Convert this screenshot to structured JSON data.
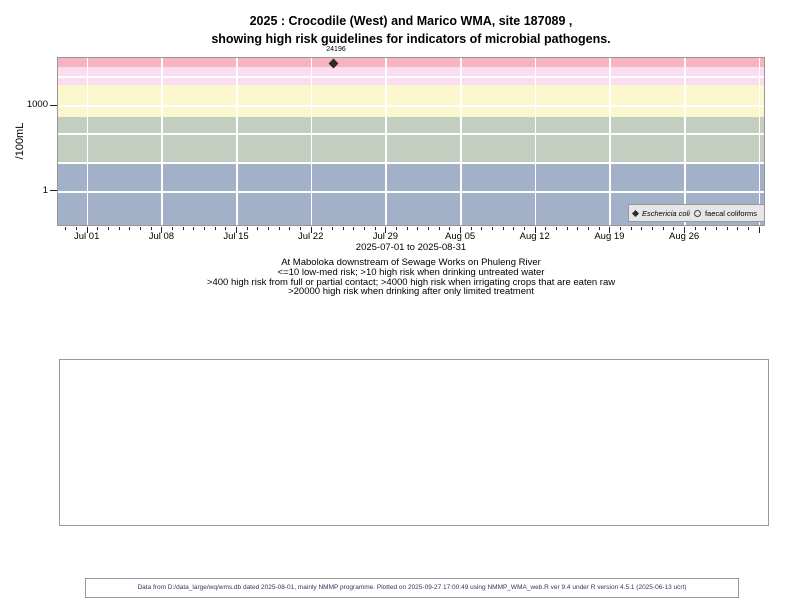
{
  "title": {
    "line1": "2025 : Crocodile (West) and Marico WMA, site 187089 ,",
    "line2": "showing high risk guidelines for indicators of microbial pathogens."
  },
  "chart_data": {
    "type": "scatter",
    "y_scale": "log",
    "ylabel": "/100mL",
    "xlabel": "2025-07-01 to 2025-08-31",
    "x_ticks": [
      "Jul 01",
      "Jul 08",
      "Jul 15",
      "Jul 22",
      "Jul 29",
      "Aug 05",
      "Aug 12",
      "Aug 19",
      "Aug 26"
    ],
    "y_ticks": [
      "1000",
      "1"
    ],
    "ylim": [
      0.06,
      48000
    ],
    "grid": true,
    "legend_position": "bottom-right",
    "series": [
      {
        "name": "Eschericia coli",
        "marker": "filled-diamond",
        "color": "#2b2b2b",
        "points": [
          {
            "date": "2025-07-24",
            "value": 24196,
            "label": "24196"
          }
        ]
      },
      {
        "name": "faecal coliforms",
        "marker": "open-circle",
        "color": "#444444",
        "points": []
      }
    ],
    "risk_bands": [
      {
        "range": ">20000",
        "meaning": "high risk when drinking after only limited treatment",
        "color": "#f8b4be"
      },
      {
        "range": "4000-20000",
        "meaning": "high risk when irrigating crops that are eaten raw",
        "color": "#fbddf0"
      },
      {
        "range": "400-4000",
        "meaning": "high risk from full or partial contact",
        "color": "#faf7cf"
      },
      {
        "range": "10-400",
        "meaning": "high risk when drinking untreated water",
        "color": "#c4cec0"
      },
      {
        "range": "<=10",
        "meaning": "low-med risk",
        "color": "#a2b1c8"
      }
    ]
  },
  "captions": {
    "line1": "At Maboloka downstream of Sewage Works on Phuleng River",
    "line2": "<=10 low-med risk; >10 high risk when drinking untreated water",
    "line3": ">400 high risk from full or partial contact; >4000 high risk when irrigating crops that are eaten raw",
    "line4": ">20000 high risk when drinking after only limited treatment"
  },
  "footer": {
    "text": "Data from D:/data_large/wq/wms.db dated 2025-08-01, mainly NMMP programme. Plotted on 2025-09-27 17:00:49 using NMMP_WMA_web.R ver 9.4 under R version 4.5.1 (2025-06-13 ucrt)"
  }
}
